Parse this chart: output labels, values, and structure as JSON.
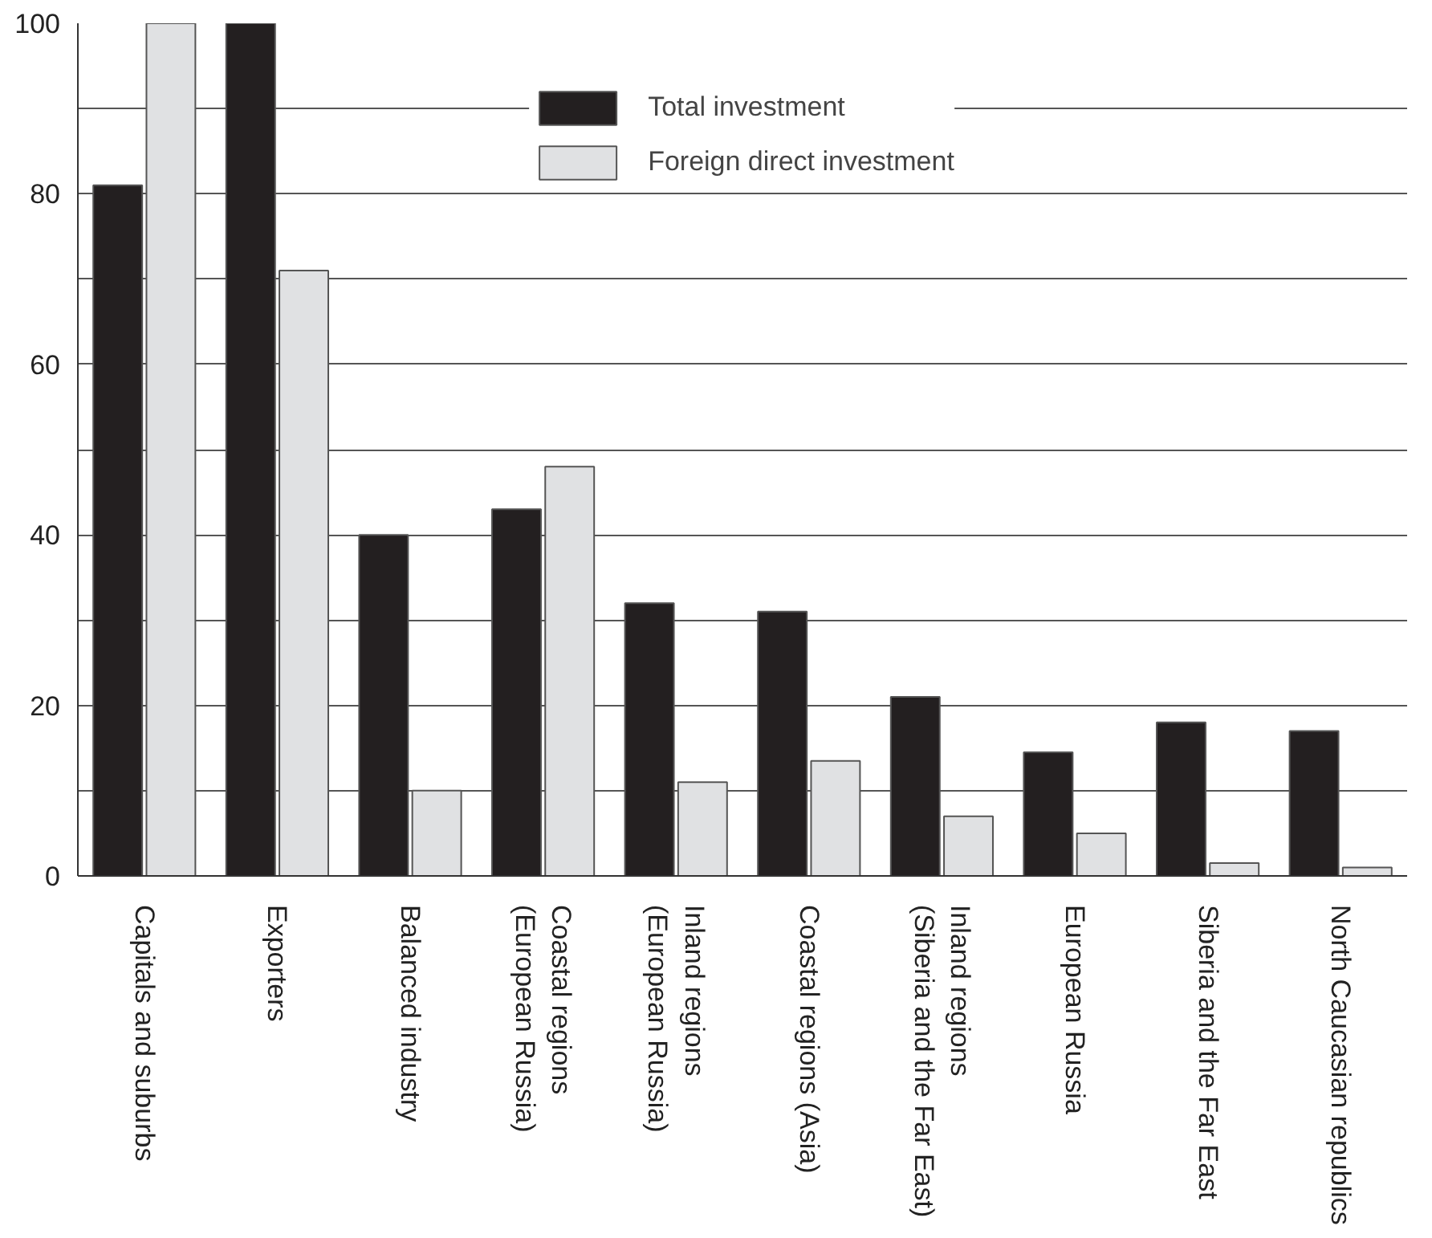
{
  "chart_data": {
    "type": "bar",
    "categories": [
      "Capitals and suburbs",
      "Exporters",
      "Balanced industry",
      "Coastal regions\n(European Russia)",
      "Inland regions\n(European Russia)",
      "Coastal regions (Asia)",
      "Inland regions\n(Siberia and the Far East)",
      "European Russia",
      "Siberia and the Far East",
      "North Caucasian republics"
    ],
    "series": [
      {
        "name": "Total investment",
        "color": "#231f20",
        "values": [
          81,
          100,
          40,
          43,
          32,
          31,
          21,
          14.5,
          18,
          17
        ]
      },
      {
        "name": "Foreign direct investment",
        "color": "#e0e1e3",
        "values": [
          100,
          71,
          10,
          48,
          11,
          13.5,
          7,
          5,
          1.5,
          1
        ]
      }
    ],
    "ylim": [
      0,
      100
    ],
    "yticks": [
      0,
      {
        "value": 10,
        "label": null
      },
      20,
      {
        "value": 30,
        "label": null
      },
      40,
      {
        "value": 50,
        "label": null
      },
      60,
      {
        "value": 70,
        "label": null
      },
      80,
      {
        "value": 90,
        "label": null
      },
      100
    ],
    "grid": "y",
    "legend": "top"
  }
}
